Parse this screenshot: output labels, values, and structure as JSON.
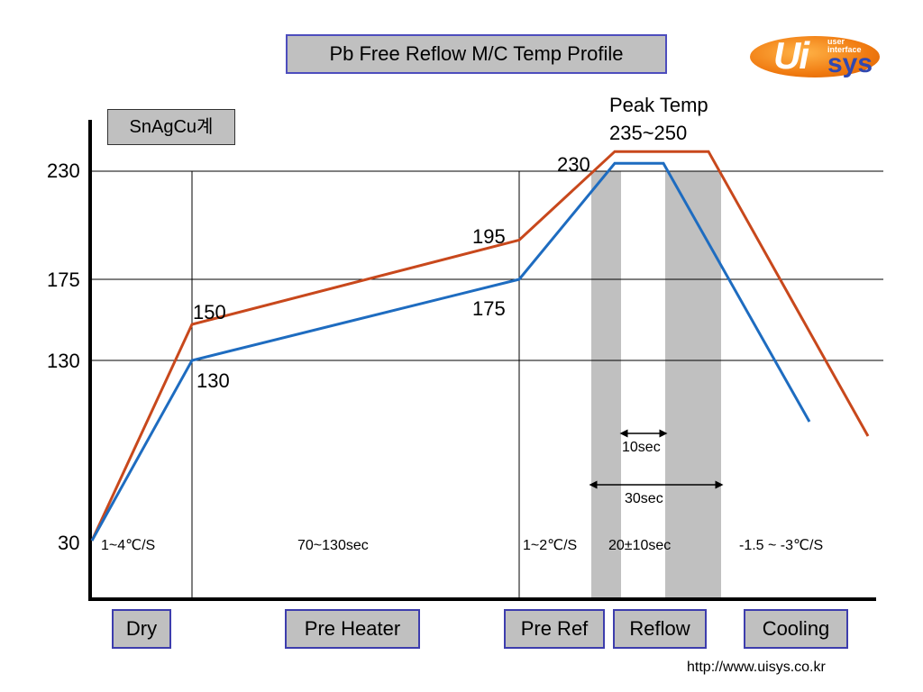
{
  "title": "Pb Free Reflow M/C Temp Profile",
  "logo": {
    "main": "Ui",
    "suffix": "sys",
    "small_line1": "user",
    "small_line2": "interface"
  },
  "alloy": "SnAgCu계",
  "url": "http://www.uisys.co.kr",
  "phases": [
    {
      "label": "Dry"
    },
    {
      "label": "Pre Heater"
    },
    {
      "label": "Pre Ref"
    },
    {
      "label": "Reflow"
    },
    {
      "label": "Cooling"
    }
  ],
  "chart_data": {
    "type": "line",
    "title": "Pb Free Reflow M/C Temp Profile",
    "xlabel": "",
    "ylabel": "",
    "y_ticks": [
      "230",
      "175",
      "130",
      "30"
    ],
    "y_tick_values": [
      230,
      175,
      130,
      30
    ],
    "x_note": "x values are relative time positions (no printed x scale)",
    "series": [
      {
        "color": "#c8481c",
        "points": [
          [
            0,
            30
          ],
          [
            1,
            150
          ],
          [
            4.2,
            195
          ],
          [
            5.0,
            240
          ],
          [
            5.9,
            240
          ],
          [
            7.7,
            88
          ]
        ]
      },
      {
        "color": "#1e6cc0",
        "points": [
          [
            0,
            30
          ],
          [
            1,
            130
          ],
          [
            4.2,
            175
          ],
          [
            5.0,
            234
          ],
          [
            5.4,
            234
          ],
          [
            7.0,
            96
          ]
        ]
      }
    ],
    "point_labels": [
      "150",
      "130",
      "195",
      "175",
      "230"
    ],
    "peak_label_line1": "Peak Temp",
    "peak_label_line2": "235~250",
    "rates": [
      "1~4℃/S",
      "70~130sec",
      "1~2℃/S",
      "20±10sec",
      "-1.5 ~ -3℃/S"
    ],
    "durations": [
      "10sec",
      "30sec"
    ],
    "grid": true
  }
}
